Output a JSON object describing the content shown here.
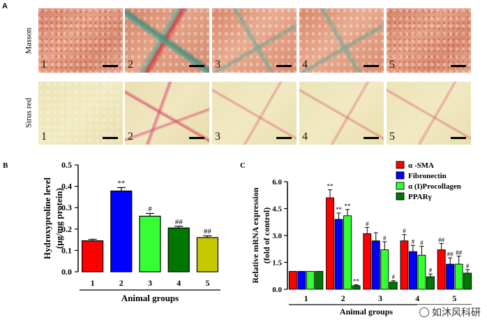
{
  "panel_a": {
    "letter": "A",
    "rows": [
      {
        "label": "Masson",
        "tiles": [
          "1",
          "2",
          "3",
          "4",
          "5"
        ]
      },
      {
        "label": "Sirus red",
        "tiles": [
          "1",
          "2",
          "3",
          "4",
          "5"
        ]
      }
    ]
  },
  "chart_data": [
    {
      "panel": "B",
      "type": "bar",
      "categories": [
        "1",
        "2",
        "3",
        "4",
        "5"
      ],
      "values": [
        0.145,
        0.378,
        0.26,
        0.205,
        0.16
      ],
      "errors": [
        0.007,
        0.016,
        0.013,
        0.008,
        0.008
      ],
      "annotations": [
        "",
        "**",
        "#",
        "##",
        "##"
      ],
      "colors": [
        "#ff0000",
        "#0000ff",
        "#33ff33",
        "#007700",
        "#c8c800"
      ],
      "xlabel": "Animal groups",
      "ylabel_line1": "Hydroxyproline level",
      "ylabel_line2": "(μg/mg protein)",
      "ylim": [
        0,
        0.5
      ],
      "yticks": [
        "0.0",
        "0.1",
        "0.2",
        "0.3",
        "0.4",
        "0.5"
      ]
    },
    {
      "panel": "C",
      "type": "bar",
      "categories": [
        "1",
        "2",
        "3",
        "4",
        "5"
      ],
      "series": [
        {
          "name": "α -SMA",
          "color": "#ff0000",
          "values": [
            1.0,
            5.1,
            3.1,
            2.7,
            2.2
          ],
          "errors": [
            0.0,
            0.45,
            0.35,
            0.35,
            0.35
          ],
          "annotations": [
            "",
            "**",
            "#",
            "#",
            "##"
          ]
        },
        {
          "name": "Fibronectin",
          "color": "#0000ff",
          "values": [
            1.0,
            3.9,
            2.7,
            2.1,
            1.4
          ],
          "errors": [
            0.0,
            0.35,
            0.45,
            0.35,
            0.35
          ],
          "annotations": [
            "",
            "**",
            "",
            "#",
            "##"
          ]
        },
        {
          "name": "α (I)Procollagen",
          "color": "#33ff33",
          "values": [
            1.0,
            4.1,
            2.2,
            1.9,
            1.4
          ],
          "errors": [
            0.0,
            0.35,
            0.45,
            0.5,
            0.45
          ],
          "annotations": [
            "",
            "**",
            "#",
            "#",
            "##"
          ]
        },
        {
          "name": "PPARγ",
          "color": "#007700",
          "values": [
            1.0,
            0.2,
            0.4,
            0.7,
            0.9
          ],
          "errors": [
            0.0,
            0.05,
            0.08,
            0.15,
            0.2
          ],
          "annotations": [
            "",
            "**",
            "#",
            "#",
            "#"
          ]
        }
      ],
      "xlabel": "Animal groups",
      "ylabel_line1": "Relative mRNA expression",
      "ylabel_line2": "(fold of control)",
      "ylim": [
        0,
        6.0
      ],
      "yticks": [
        "0.0",
        "1.5",
        "3.0",
        "4.5",
        "6.0"
      ]
    }
  ],
  "watermark": {
    "text": "如沐风科研",
    "icon": "wechat-icon"
  }
}
